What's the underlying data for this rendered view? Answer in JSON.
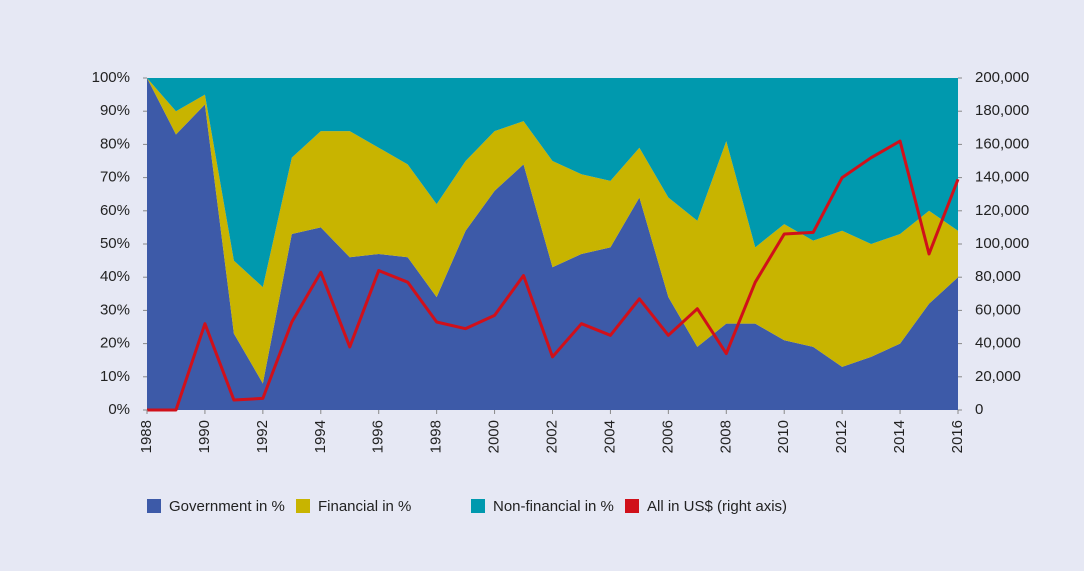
{
  "chart_data": {
    "type": "stacked-area-line",
    "x": [
      1988,
      1989,
      1990,
      1991,
      1992,
      1993,
      1994,
      1995,
      1996,
      1997,
      1998,
      1999,
      2000,
      2001,
      2002,
      2003,
      2004,
      2005,
      2006,
      2007,
      2008,
      2009,
      2010,
      2011,
      2012,
      2013,
      2014,
      2015,
      2016
    ],
    "xlim": [
      1988,
      2016
    ],
    "xticks": [
      1988,
      1990,
      1992,
      1994,
      1996,
      1998,
      2000,
      2002,
      2004,
      2006,
      2008,
      2010,
      2012,
      2014,
      2016
    ],
    "series": [
      {
        "name": "Government in %",
        "color": "#3d5aa8",
        "values": [
          100,
          83,
          92,
          23,
          8,
          53,
          55,
          46,
          47,
          46,
          34,
          54,
          66,
          74,
          43,
          47,
          49,
          64,
          34,
          19,
          26,
          26,
          21,
          19,
          13,
          16,
          20,
          32,
          40
        ]
      },
      {
        "name": "Financial in %",
        "color": "#c8b400",
        "values": [
          0,
          7,
          3,
          22,
          29,
          23,
          29,
          38,
          32,
          28,
          28,
          21,
          18,
          13,
          32,
          24,
          20,
          15,
          30,
          38,
          55,
          23,
          35,
          32,
          41,
          34,
          33,
          28,
          14
        ]
      },
      {
        "name": "Non-financial in %",
        "color": "#0099ae",
        "values": [
          0,
          10,
          5,
          55,
          63,
          24,
          16,
          16,
          21,
          26,
          38,
          25,
          16,
          13,
          25,
          29,
          31,
          21,
          36,
          43,
          19,
          51,
          44,
          49,
          46,
          50,
          47,
          40,
          46
        ]
      },
      {
        "name": "All in US$ (right axis)",
        "color": "#d0101a",
        "axis": "y2",
        "values": [
          0,
          0,
          52000,
          6000,
          7000,
          53000,
          83000,
          38000,
          84000,
          77000,
          53000,
          49000,
          57000,
          81000,
          32000,
          52000,
          45000,
          67000,
          45000,
          61000,
          34000,
          77000,
          106000,
          107000,
          140000,
          152000,
          162000,
          94000,
          139000
        ]
      }
    ],
    "ylim": [
      0,
      100
    ],
    "yticks": [
      {
        "value": 0,
        "label": "0%"
      },
      {
        "value": 10,
        "label": "10%"
      },
      {
        "value": 20,
        "label": "20%"
      },
      {
        "value": 30,
        "label": "30%"
      },
      {
        "value": 40,
        "label": "40%"
      },
      {
        "value": 50,
        "label": "50%"
      },
      {
        "value": 60,
        "label": "60%"
      },
      {
        "value": 70,
        "label": "70%"
      },
      {
        "value": 80,
        "label": "80%"
      },
      {
        "value": 90,
        "label": "90%"
      },
      {
        "value": 100,
        "label": "100%"
      }
    ],
    "y2lim": [
      0,
      200000
    ],
    "y2ticks": [
      0,
      {
        "value": 20000,
        "label": "20,000"
      },
      {
        "value": 40000,
        "label": "40,000"
      },
      {
        "value": 60000,
        "label": "60,000"
      },
      {
        "value": 80000,
        "label": "80,000"
      },
      {
        "value": 100000,
        "label": "100,000"
      },
      {
        "value": 120000,
        "label": "120,000"
      },
      {
        "value": 140000,
        "label": "140,000"
      },
      {
        "value": 160000,
        "label": "160,000"
      },
      {
        "value": 180000,
        "label": "180,000"
      },
      {
        "value": 200000,
        "label": "200,000"
      }
    ],
    "legend": "bottom-left"
  }
}
